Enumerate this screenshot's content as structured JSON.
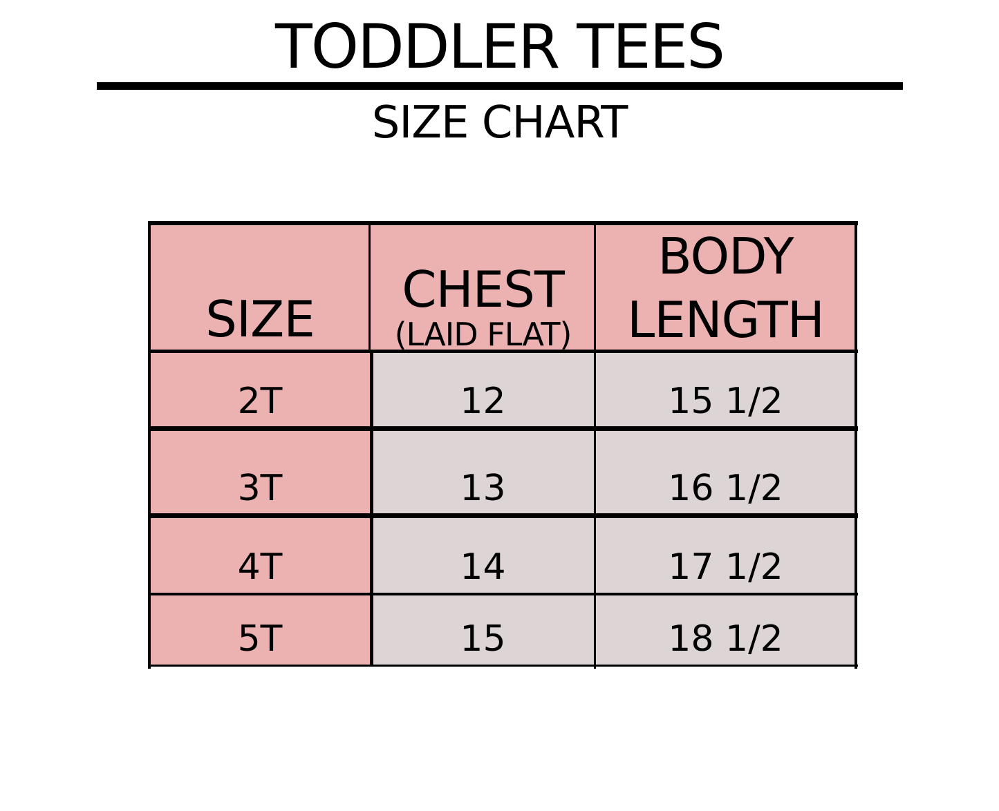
{
  "title": "TODDLER TEES",
  "subtitle": "SIZE CHART",
  "colors": {
    "header_fill": "#ecb1b1",
    "size_column_fill": "#ecb1b1",
    "value_fill": "#ddd5d5",
    "lines": "#000000"
  },
  "table": {
    "headers": {
      "size": "SIZE",
      "chest": "CHEST",
      "chest_note": "(LAID FLAT)",
      "body_length_line1": "BODY",
      "body_length_line2": "LENGTH"
    },
    "rows": [
      {
        "size": "2T",
        "chest": "12",
        "body_length": "15 1/2"
      },
      {
        "size": "3T",
        "chest": "13",
        "body_length": "16 1/2"
      },
      {
        "size": "4T",
        "chest": "14",
        "body_length": "17 1/2"
      },
      {
        "size": "5T",
        "chest": "15",
        "body_length": "18 1/2"
      }
    ]
  }
}
